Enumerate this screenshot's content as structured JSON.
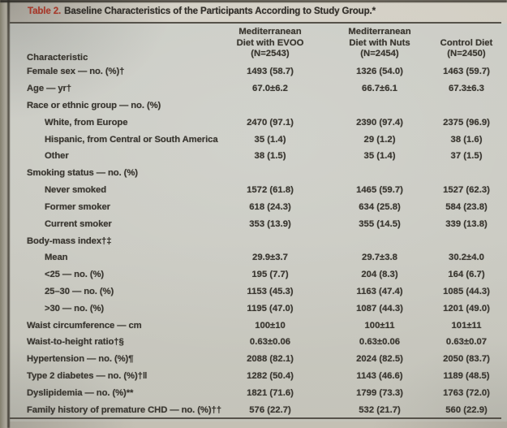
{
  "title": {
    "label": "Table 2.",
    "text": "Baseline Characteristics of the Participants According to Study Group.*"
  },
  "colors": {
    "accent_red": "#a63a2c",
    "ink": "#3a3731",
    "paper": "#cecabf",
    "rule": "#56524a"
  },
  "table": {
    "characteristic_header": "Characteristic",
    "columns": [
      {
        "lines": [
          "Mediterranean",
          "Diet with EVOO",
          "(N=2543)"
        ]
      },
      {
        "lines": [
          "Mediterranean",
          "Diet with Nuts",
          "(N=2454)"
        ]
      },
      {
        "lines": [
          "Control Diet",
          "(N=2450)"
        ]
      }
    ],
    "rows": [
      {
        "label": "Female sex — no. (%)†",
        "indent": 0,
        "values": [
          "1493 (58.7)",
          "1326 (54.0)",
          "1463 (59.7)"
        ]
      },
      {
        "label": "Age — yr†",
        "indent": 0,
        "values": [
          "67.0±6.2",
          "66.7±6.1",
          "67.3±6.3"
        ]
      },
      {
        "label": "Race or ethnic group — no. (%)",
        "indent": 0,
        "values": [
          "",
          "",
          ""
        ]
      },
      {
        "label": "White, from Europe",
        "indent": 1,
        "values": [
          "2470 (97.1)",
          "2390 (97.4)",
          "2375 (96.9)"
        ]
      },
      {
        "label": "Hispanic, from Central or South America",
        "indent": 1,
        "values": [
          "35 (1.4)",
          "29 (1.2)",
          "38 (1.6)"
        ]
      },
      {
        "label": "Other",
        "indent": 1,
        "values": [
          "38 (1.5)",
          "35 (1.4)",
          "37 (1.5)"
        ]
      },
      {
        "label": "Smoking status — no. (%)",
        "indent": 0,
        "values": [
          "",
          "",
          ""
        ]
      },
      {
        "label": "Never smoked",
        "indent": 1,
        "values": [
          "1572 (61.8)",
          "1465 (59.7)",
          "1527 (62.3)"
        ]
      },
      {
        "label": "Former smoker",
        "indent": 1,
        "values": [
          "618 (24.3)",
          "634 (25.8)",
          "584 (23.8)"
        ]
      },
      {
        "label": "Current smoker",
        "indent": 1,
        "values": [
          "353 (13.9)",
          "355 (14.5)",
          "339 (13.8)"
        ]
      },
      {
        "label": "Body-mass index†‡",
        "indent": 0,
        "values": [
          "",
          "",
          ""
        ]
      },
      {
        "label": "Mean",
        "indent": 1,
        "values": [
          "29.9±3.7",
          "29.7±3.8",
          "30.2±4.0"
        ]
      },
      {
        "label": "<25 — no. (%)",
        "indent": 1,
        "values": [
          "195 (7.7)",
          "204 (8.3)",
          "164 (6.7)"
        ]
      },
      {
        "label": "25–30 — no. (%)",
        "indent": 1,
        "values": [
          "1153 (45.3)",
          "1163 (47.4)",
          "1085 (44.3)"
        ]
      },
      {
        "label": ">30 — no. (%)",
        "indent": 1,
        "values": [
          "1195 (47.0)",
          "1087 (44.3)",
          "1201 (49.0)"
        ]
      },
      {
        "label": "Waist circumference — cm",
        "indent": 0,
        "values": [
          "100±10",
          "100±11",
          "101±11"
        ]
      },
      {
        "label": "Waist-to-height ratio†§",
        "indent": 0,
        "values": [
          "0.63±0.06",
          "0.63±0.06",
          "0.63±0.07"
        ]
      },
      {
        "label": "Hypertension — no. (%)¶",
        "indent": 0,
        "values": [
          "2088 (82.1)",
          "2024 (82.5)",
          "2050 (83.7)"
        ]
      },
      {
        "label": "Type 2 diabetes — no. (%)†‖",
        "indent": 0,
        "values": [
          "1282 (50.4)",
          "1143 (46.6)",
          "1189 (48.5)"
        ]
      },
      {
        "label": "Dyslipidemia — no. (%)**",
        "indent": 0,
        "values": [
          "1821 (71.6)",
          "1799 (73.3)",
          "1763 (72.0)"
        ]
      },
      {
        "label": "Family history of premature CHD — no. (%)††",
        "indent": 0,
        "values": [
          "576 (22.7)",
          "532 (21.7)",
          "560 (22.9)"
        ]
      }
    ]
  }
}
